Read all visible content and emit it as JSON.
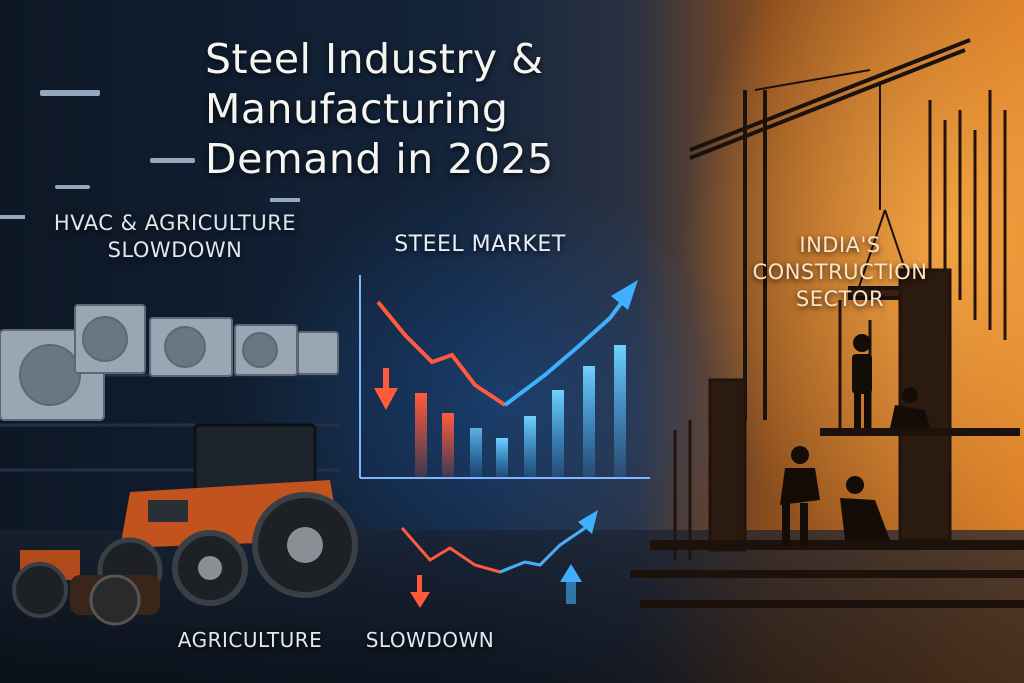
{
  "title_lines": [
    "Steel Industry &",
    "Manufacturing",
    "Demand in 2025"
  ],
  "labels": {
    "hvac_lines": [
      "HVAC & AGRICULTURE",
      "SLOWDOWN"
    ],
    "market": "STEEL MARKET",
    "india_lines": [
      "INDIA'S",
      "CONSTRUCTION",
      "SECTOR"
    ],
    "agriculture": "AGRICULTURE",
    "slowdown": "SLOWDOWN"
  },
  "colors": {
    "decline": "#ff5a3c",
    "growth": "#3fb0ff",
    "construction_glow": "#f08a2a",
    "tractor": "#c2521e"
  },
  "icons": [
    "decline-arrow-icon",
    "growth-arrow-icon",
    "crane-icon",
    "air-conditioner-icon",
    "tractor-icon"
  ]
}
